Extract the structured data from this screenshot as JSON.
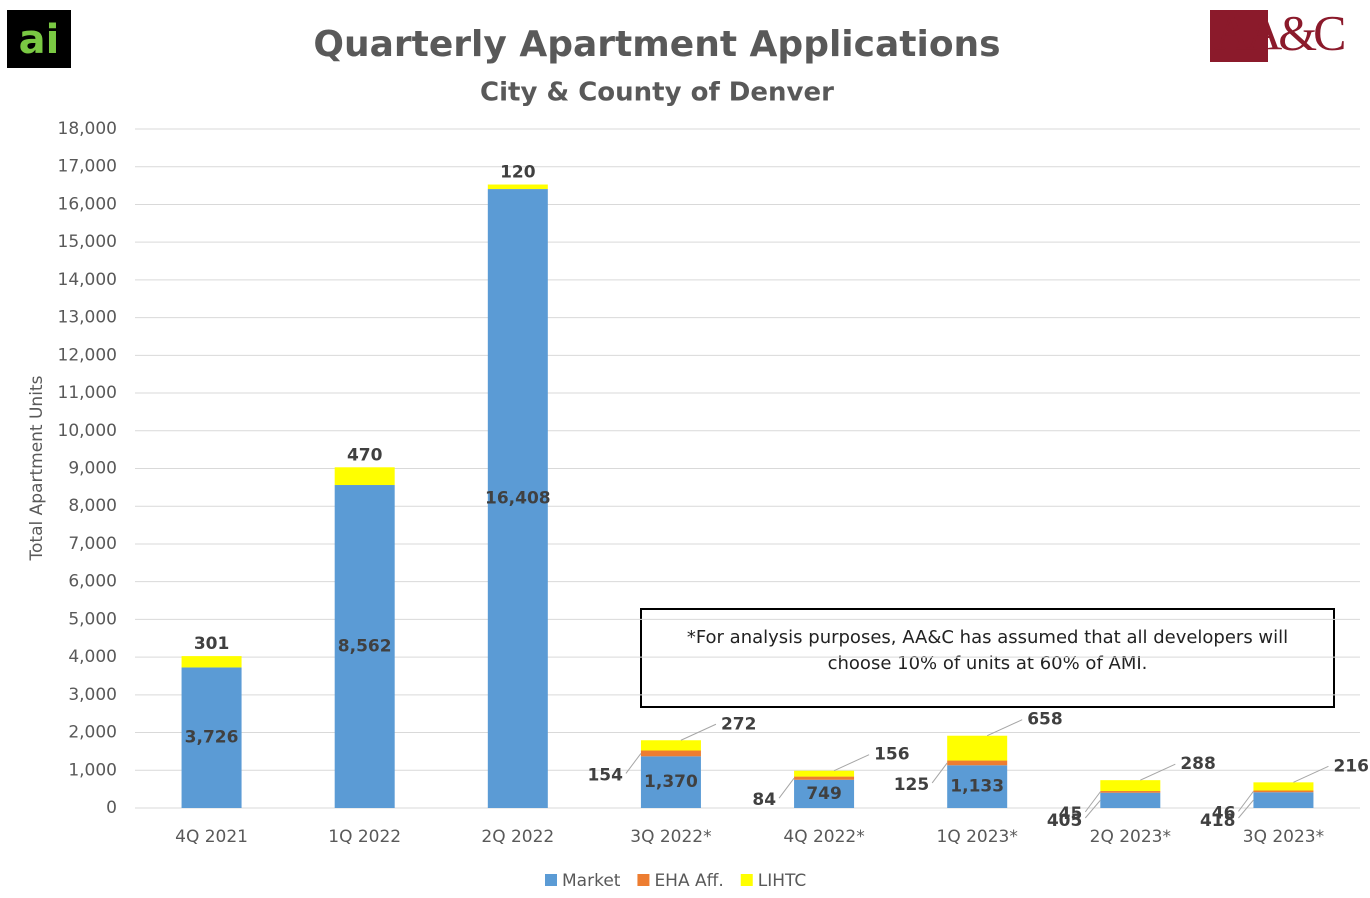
{
  "logos": {
    "left": "ai",
    "right": "AA&C"
  },
  "chart_data": {
    "type": "stacked_bar",
    "title": "Quarterly Apartment Applications",
    "subtitle": "City & County of Denver",
    "y_label": "Total Apartment Units",
    "annotation": "*For analysis purposes, AA&C has assumed that all developers will choose 10% of units at 60% of AMI.",
    "categories": [
      "4Q 2021",
      "1Q 2022",
      "2Q 2022",
      "3Q 2022*",
      "4Q 2022*",
      "1Q 2023*",
      "2Q 2023*",
      "3Q 2023*"
    ],
    "series": [
      {
        "name": "Market",
        "color": "#5b9bd5",
        "values": [
          3726,
          8562,
          16408,
          1370,
          749,
          1133,
          405,
          418
        ],
        "value_labels": [
          "3,726",
          "8,562",
          "16,408",
          "1,370",
          "749",
          "1,133",
          "405",
          "418"
        ]
      },
      {
        "name": "EHA Aff.",
        "color": "#ed7d31",
        "values": [
          null,
          null,
          null,
          154,
          84,
          125,
          45,
          46
        ],
        "value_labels": [
          null,
          null,
          null,
          "154",
          "84",
          "125",
          "45",
          "46"
        ]
      },
      {
        "name": "LIHTC",
        "color": "#ffff00",
        "values": [
          301,
          470,
          120,
          272,
          156,
          658,
          288,
          216
        ],
        "value_labels": [
          "301",
          "470",
          "120",
          "272",
          "156",
          "658",
          "288",
          "216"
        ]
      }
    ],
    "ylim": [
      0,
      18000
    ],
    "yticks": [
      0,
      {
        "value": 1000,
        "label": "1,000"
      },
      {
        "value": 2000,
        "label": "2,000"
      },
      {
        "value": 3000,
        "label": "3,000"
      },
      {
        "value": 4000,
        "label": "4,000"
      },
      {
        "value": 5000,
        "label": "5,000"
      },
      {
        "value": 6000,
        "label": "6,000"
      },
      {
        "value": 7000,
        "label": "7,000"
      },
      {
        "value": 8000,
        "label": "8,000"
      },
      {
        "value": 9000,
        "label": "9,000"
      },
      {
        "value": 10000,
        "label": "10,000"
      },
      {
        "value": 11000,
        "label": "11,000"
      },
      {
        "value": 12000,
        "label": "12,000"
      },
      {
        "value": 13000,
        "label": "13,000"
      },
      {
        "value": 14000,
        "label": "14,000"
      },
      {
        "value": 15000,
        "label": "15,000"
      },
      {
        "value": 16000,
        "label": "16,000"
      },
      {
        "value": 17000,
        "label": "17,000"
      },
      {
        "value": 18000,
        "label": "18,000"
      }
    ],
    "grid": true
  }
}
